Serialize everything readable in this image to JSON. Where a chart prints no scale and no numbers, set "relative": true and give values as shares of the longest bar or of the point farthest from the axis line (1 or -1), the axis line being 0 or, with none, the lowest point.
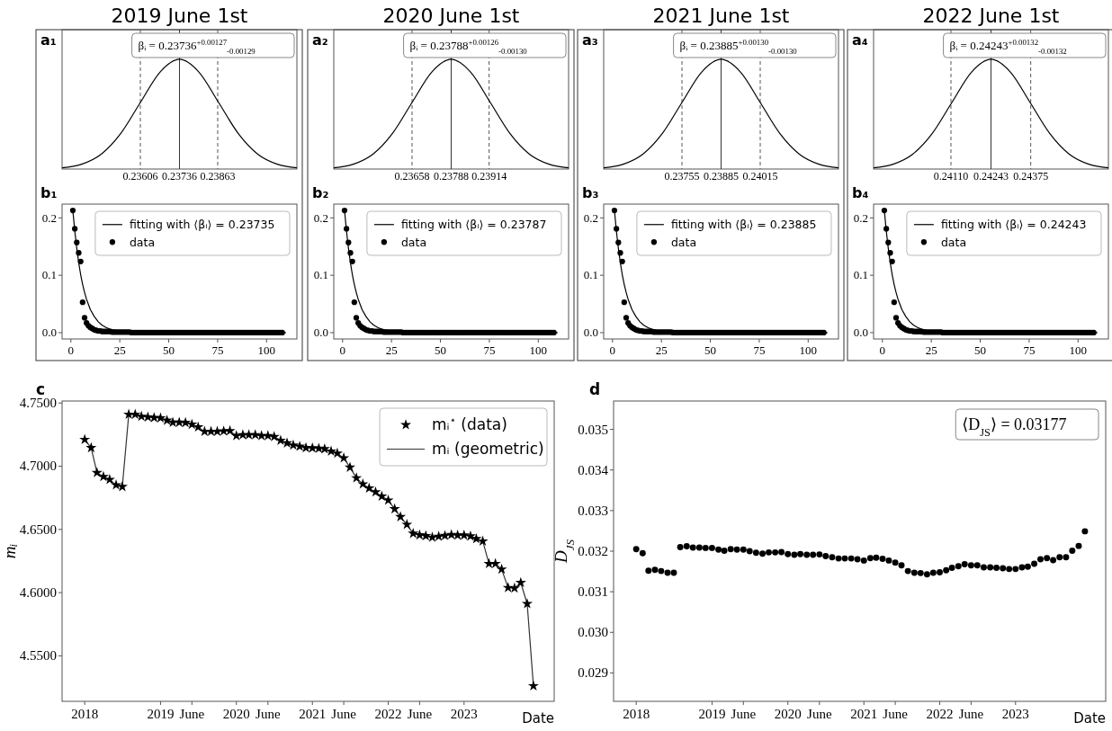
{
  "chart_data": [
    {
      "type": "line",
      "title": "2019 June 1st",
      "relative": true,
      "annotations": [
        "a₁",
        "βᵢ = 0.23736$^{+0.00127}$$_{-0.00129}$"
      ],
      "xlim": [
        0.23346,
        0.24126
      ],
      "xticks": [
        0.23606,
        0.23736,
        0.23863
      ],
      "ref_lines": [
        {
          "axis": "x",
          "value": 0.23606,
          "color": "#555555",
          "line_style": "dashed"
        },
        {
          "axis": "x",
          "value": 0.23736,
          "color": "#333333",
          "line_style": "solid"
        },
        {
          "axis": "x",
          "value": 0.23863,
          "color": "#555555",
          "line_style": "dashed"
        }
      ],
      "series": [
        {
          "color": "#000000",
          "x": [
            0.23346,
            0.23411,
            0.23476,
            0.23541,
            0.23606,
            0.23671,
            0.23736,
            0.23801,
            0.23866,
            0.23931,
            0.23996,
            0.24061,
            0.24126
          ],
          "values": [
            0.0111,
            0.0439,
            0.1353,
            0.3247,
            0.6065,
            0.8825,
            1,
            0.8825,
            0.6065,
            0.3247,
            0.1353,
            0.0439,
            0.0111
          ]
        }
      ]
    },
    {
      "type": "line",
      "title": "2020 June 1st",
      "relative": true,
      "annotations": [
        "a₂",
        "βᵢ = 0.23788$^{+0.00126}$$_{-0.00130}$"
      ],
      "xlim": [
        0.23398,
        0.24178
      ],
      "xticks": [
        0.23658,
        0.23788,
        0.23914
      ],
      "ref_lines": [
        {
          "axis": "x",
          "value": 0.23658,
          "color": "#555555",
          "line_style": "dashed"
        },
        {
          "axis": "x",
          "value": 0.23788,
          "color": "#333333",
          "line_style": "solid"
        },
        {
          "axis": "x",
          "value": 0.23914,
          "color": "#555555",
          "line_style": "dashed"
        }
      ],
      "series": [
        {
          "color": "#000000",
          "x": [
            0.23398,
            0.23463,
            0.23528,
            0.23593,
            0.23658,
            0.23723,
            0.23788,
            0.23853,
            0.23918,
            0.23983,
            0.24048,
            0.24113,
            0.24178
          ],
          "values": [
            0.0111,
            0.0439,
            0.1353,
            0.3247,
            0.6065,
            0.8825,
            1,
            0.8825,
            0.6065,
            0.3247,
            0.1353,
            0.0439,
            0.0111
          ]
        }
      ]
    },
    {
      "type": "line",
      "title": "2021 June 1st",
      "relative": true,
      "annotations": [
        "a₃",
        "βᵢ = 0.23885$^{+0.00130}$$_{-0.00130}$"
      ],
      "xlim": [
        0.23495,
        0.24275
      ],
      "xticks": [
        0.23755,
        0.23885,
        0.24015
      ],
      "ref_lines": [
        {
          "axis": "x",
          "value": 0.23755,
          "color": "#555555",
          "line_style": "dashed"
        },
        {
          "axis": "x",
          "value": 0.23885,
          "color": "#333333",
          "line_style": "solid"
        },
        {
          "axis": "x",
          "value": 0.24015,
          "color": "#555555",
          "line_style": "dashed"
        }
      ],
      "series": [
        {
          "color": "#000000",
          "x": [
            0.23495,
            0.2356,
            0.23625,
            0.2369,
            0.23755,
            0.2382,
            0.23885,
            0.2395,
            0.24015,
            0.2408,
            0.24145,
            0.2421,
            0.24275
          ],
          "values": [
            0.0111,
            0.0439,
            0.1353,
            0.3247,
            0.6065,
            0.8825,
            1,
            0.8825,
            0.6065,
            0.3247,
            0.1353,
            0.0439,
            0.0111
          ]
        }
      ]
    },
    {
      "type": "line",
      "title": "2022 June 1st",
      "relative": true,
      "annotations": [
        "a₄",
        "βᵢ = 0.24243$^{+0.00132}$$_{-0.00132}$"
      ],
      "xlim": [
        0.23853,
        0.24633
      ],
      "xticks": [
        {
          "value": 0.2411,
          "label": "0.24110"
        },
        0.24243,
        0.24375
      ],
      "ref_lines": [
        {
          "axis": "x",
          "value": 0.2411,
          "color": "#555555",
          "line_style": "dashed"
        },
        {
          "axis": "x",
          "value": 0.24243,
          "color": "#333333",
          "line_style": "solid"
        },
        {
          "axis": "x",
          "value": 0.24375,
          "color": "#555555",
          "line_style": "dashed"
        }
      ],
      "series": [
        {
          "color": "#000000",
          "x": [
            0.23853,
            0.23918,
            0.23983,
            0.24048,
            0.24113,
            0.24178,
            0.24243,
            0.24308,
            0.24373,
            0.24438,
            0.24503,
            0.24568,
            0.24633
          ],
          "values": [
            0.0111,
            0.0439,
            0.1353,
            0.3247,
            0.6065,
            0.8825,
            1,
            0.8825,
            0.6065,
            0.3247,
            0.1353,
            0.0439,
            0.0111
          ]
        }
      ]
    },
    {
      "type": "line",
      "annotations": [
        "b₁"
      ],
      "xlim": [
        -4.5,
        115.5
      ],
      "ylim": [
        -0.011,
        0.224
      ],
      "xticks": [
        0,
        25,
        50,
        75,
        100
      ],
      "yticks": [
        {
          "value": 0,
          "label": "0.0"
        },
        0.1,
        0.2
      ],
      "legend": "top right",
      "series": [
        {
          "name": "fitting with ⟨βᵢ⟩ = 0.23735",
          "type": "line",
          "color": "#000000",
          "x": [
            1,
            2,
            3,
            4,
            5,
            6,
            7,
            8,
            10,
            12,
            14,
            16,
            18,
            20,
            25,
            30,
            40,
            60,
            80,
            110
          ],
          "values": [
            0.213,
            0.177,
            0.147,
            0.122,
            0.101,
            0.084,
            0.07,
            0.058,
            0.04,
            0.028,
            0.019,
            0.013,
            0.009,
            0.006,
            0.002,
            0.001,
            0,
            0,
            0,
            0
          ]
        },
        {
          "name": "data",
          "type": "scatter",
          "marker": "circle",
          "color": "#000000",
          "x": [
            1,
            2,
            3,
            4,
            5,
            6,
            7,
            8,
            9,
            10,
            11,
            12,
            13,
            14,
            15,
            16,
            17,
            18,
            19,
            20,
            21,
            22,
            23,
            24,
            25,
            26,
            27,
            28,
            29,
            30,
            31,
            32,
            33,
            34,
            35,
            36,
            37,
            38,
            39,
            40,
            41,
            42,
            43,
            44,
            45,
            46,
            47,
            48,
            49,
            50,
            51,
            52,
            53,
            54,
            55,
            56,
            57,
            58,
            59,
            60,
            61,
            62,
            63,
            64,
            65,
            66,
            67,
            68,
            69,
            70,
            71,
            72,
            73,
            74,
            75,
            76,
            77,
            78,
            79,
            80,
            81,
            82,
            83,
            84,
            85,
            86,
            87,
            88,
            89,
            90,
            91,
            92,
            93,
            94,
            95,
            96,
            97,
            98,
            99,
            100,
            101,
            102,
            103,
            104,
            105,
            106,
            107,
            108
          ],
          "values": [
            0.213,
            0.181,
            0.157,
            0.139,
            0.124,
            0.053,
            0.026,
            0.017,
            0.012,
            0.009,
            0.007,
            0.005,
            0.004,
            0.003,
            0.003,
            0.002,
            0.002,
            0.002,
            0.002,
            0.002,
            0.001,
            0.001,
            0.001,
            0.001,
            0.001,
            0.001,
            0.001,
            0.001,
            0.001,
            0.001,
            0,
            0,
            0,
            0,
            0,
            0,
            0,
            0,
            0,
            0,
            0,
            0,
            0,
            0,
            0,
            0,
            0,
            0,
            0,
            0,
            0,
            0,
            0,
            0,
            0,
            0,
            0,
            0,
            0,
            0,
            0,
            0,
            0,
            0,
            0,
            0,
            0,
            0,
            0,
            0,
            0,
            0,
            0,
            0,
            0,
            0,
            0,
            0,
            0,
            0,
            0,
            0,
            0,
            0,
            0,
            0,
            0,
            0,
            0,
            0,
            0,
            0,
            0,
            0,
            0,
            0,
            0,
            0,
            0,
            0,
            0,
            0,
            0,
            0,
            0,
            0,
            0,
            0
          ]
        }
      ]
    },
    {
      "type": "line",
      "annotations": [
        "b₂"
      ],
      "xlim": [
        -4.5,
        115.5
      ],
      "ylim": [
        -0.011,
        0.224
      ],
      "xticks": [
        0,
        25,
        50,
        75,
        100
      ],
      "yticks": [
        {
          "value": 0,
          "label": "0.0"
        },
        0.1,
        0.2
      ],
      "legend": "top right",
      "series": [
        {
          "name": "fitting with ⟨βᵢ⟩ = 0.23787",
          "type": "line",
          "color": "#000000",
          "x": [
            1,
            2,
            3,
            4,
            5,
            6,
            7,
            8,
            10,
            12,
            14,
            16,
            18,
            20,
            25,
            30,
            40,
            60,
            80,
            110
          ],
          "values": [
            0.213,
            0.177,
            0.147,
            0.122,
            0.101,
            0.084,
            0.07,
            0.058,
            0.04,
            0.028,
            0.019,
            0.013,
            0.009,
            0.006,
            0.002,
            0.001,
            0,
            0,
            0,
            0
          ]
        },
        {
          "name": "data",
          "type": "scatter",
          "marker": "circle",
          "color": "#000000",
          "x": [
            1,
            2,
            3,
            4,
            5,
            6,
            7,
            8,
            9,
            10,
            11,
            12,
            13,
            14,
            15,
            16,
            17,
            18,
            19,
            20,
            21,
            22,
            23,
            24,
            25,
            26,
            27,
            28,
            29,
            30,
            31,
            32,
            33,
            34,
            35,
            36,
            37,
            38,
            39,
            40,
            41,
            42,
            43,
            44,
            45,
            46,
            47,
            48,
            49,
            50,
            51,
            52,
            53,
            54,
            55,
            56,
            57,
            58,
            59,
            60,
            61,
            62,
            63,
            64,
            65,
            66,
            67,
            68,
            69,
            70,
            71,
            72,
            73,
            74,
            75,
            76,
            77,
            78,
            79,
            80,
            81,
            82,
            83,
            84,
            85,
            86,
            87,
            88,
            89,
            90,
            91,
            92,
            93,
            94,
            95,
            96,
            97,
            98,
            99,
            100,
            101,
            102,
            103,
            104,
            105,
            106,
            107,
            108
          ],
          "values": [
            0.213,
            0.181,
            0.157,
            0.139,
            0.124,
            0.053,
            0.026,
            0.017,
            0.012,
            0.009,
            0.007,
            0.005,
            0.004,
            0.003,
            0.003,
            0.002,
            0.002,
            0.002,
            0.002,
            0.002,
            0.001,
            0.001,
            0.001,
            0.001,
            0.001,
            0.001,
            0.001,
            0.001,
            0.001,
            0.001,
            0,
            0,
            0,
            0,
            0,
            0,
            0,
            0,
            0,
            0,
            0,
            0,
            0,
            0,
            0,
            0,
            0,
            0,
            0,
            0,
            0,
            0,
            0,
            0,
            0,
            0,
            0,
            0,
            0,
            0,
            0,
            0,
            0,
            0,
            0,
            0,
            0,
            0,
            0,
            0,
            0,
            0,
            0,
            0,
            0,
            0,
            0,
            0,
            0,
            0,
            0,
            0,
            0,
            0,
            0,
            0,
            0,
            0,
            0,
            0,
            0,
            0,
            0,
            0,
            0,
            0,
            0,
            0,
            0,
            0,
            0,
            0,
            0,
            0,
            0,
            0,
            0,
            0
          ]
        }
      ]
    },
    {
      "type": "line",
      "annotations": [
        "b₃"
      ],
      "xlim": [
        -4.5,
        115.5
      ],
      "ylim": [
        -0.011,
        0.224
      ],
      "xticks": [
        0,
        25,
        50,
        75,
        100
      ],
      "yticks": [
        {
          "value": 0,
          "label": "0.0"
        },
        0.1,
        0.2
      ],
      "legend": "top right",
      "series": [
        {
          "name": "fitting with ⟨βᵢ⟩ = 0.23885",
          "type": "line",
          "color": "#000000",
          "x": [
            1,
            2,
            3,
            4,
            5,
            6,
            7,
            8,
            10,
            12,
            14,
            16,
            18,
            20,
            25,
            30,
            40,
            60,
            80,
            110
          ],
          "values": [
            0.213,
            0.177,
            0.147,
            0.122,
            0.101,
            0.084,
            0.07,
            0.058,
            0.04,
            0.028,
            0.019,
            0.013,
            0.009,
            0.006,
            0.002,
            0.001,
            0,
            0,
            0,
            0
          ]
        },
        {
          "name": "data",
          "type": "scatter",
          "marker": "circle",
          "color": "#000000",
          "x": [
            1,
            2,
            3,
            4,
            5,
            6,
            7,
            8,
            9,
            10,
            11,
            12,
            13,
            14,
            15,
            16,
            17,
            18,
            19,
            20,
            21,
            22,
            23,
            24,
            25,
            26,
            27,
            28,
            29,
            30,
            31,
            32,
            33,
            34,
            35,
            36,
            37,
            38,
            39,
            40,
            41,
            42,
            43,
            44,
            45,
            46,
            47,
            48,
            49,
            50,
            51,
            52,
            53,
            54,
            55,
            56,
            57,
            58,
            59,
            60,
            61,
            62,
            63,
            64,
            65,
            66,
            67,
            68,
            69,
            70,
            71,
            72,
            73,
            74,
            75,
            76,
            77,
            78,
            79,
            80,
            81,
            82,
            83,
            84,
            85,
            86,
            87,
            88,
            89,
            90,
            91,
            92,
            93,
            94,
            95,
            96,
            97,
            98,
            99,
            100,
            101,
            102,
            103,
            104,
            105,
            106,
            107,
            108
          ],
          "values": [
            0.213,
            0.181,
            0.157,
            0.139,
            0.124,
            0.053,
            0.026,
            0.017,
            0.012,
            0.009,
            0.007,
            0.005,
            0.004,
            0.003,
            0.003,
            0.002,
            0.002,
            0.002,
            0.002,
            0.002,
            0.001,
            0.001,
            0.001,
            0.001,
            0.001,
            0.001,
            0.001,
            0.001,
            0.001,
            0.001,
            0,
            0,
            0,
            0,
            0,
            0,
            0,
            0,
            0,
            0,
            0,
            0,
            0,
            0,
            0,
            0,
            0,
            0,
            0,
            0,
            0,
            0,
            0,
            0,
            0,
            0,
            0,
            0,
            0,
            0,
            0,
            0,
            0,
            0,
            0,
            0,
            0,
            0,
            0,
            0,
            0,
            0,
            0,
            0,
            0,
            0,
            0,
            0,
            0,
            0,
            0,
            0,
            0,
            0,
            0,
            0,
            0,
            0,
            0,
            0,
            0,
            0,
            0,
            0,
            0,
            0,
            0,
            0,
            0,
            0,
            0,
            0,
            0,
            0,
            0,
            0,
            0,
            0
          ]
        }
      ]
    },
    {
      "type": "line",
      "annotations": [
        "b₄"
      ],
      "xlim": [
        -4.5,
        115.5
      ],
      "ylim": [
        -0.011,
        0.224
      ],
      "xticks": [
        0,
        25,
        50,
        75,
        100
      ],
      "yticks": [
        {
          "value": 0,
          "label": "0.0"
        },
        0.1,
        0.2
      ],
      "legend": "top right",
      "series": [
        {
          "name": "fitting with ⟨βᵢ⟩ = 0.24243",
          "type": "line",
          "color": "#000000",
          "x": [
            1,
            2,
            3,
            4,
            5,
            6,
            7,
            8,
            10,
            12,
            14,
            16,
            18,
            20,
            25,
            30,
            40,
            60,
            80,
            110
          ],
          "values": [
            0.213,
            0.177,
            0.147,
            0.122,
            0.101,
            0.084,
            0.07,
            0.058,
            0.04,
            0.028,
            0.019,
            0.013,
            0.009,
            0.006,
            0.002,
            0.001,
            0,
            0,
            0,
            0
          ]
        },
        {
          "name": "data",
          "type": "scatter",
          "marker": "circle",
          "color": "#000000",
          "x": [
            1,
            2,
            3,
            4,
            5,
            6,
            7,
            8,
            9,
            10,
            11,
            12,
            13,
            14,
            15,
            16,
            17,
            18,
            19,
            20,
            21,
            22,
            23,
            24,
            25,
            26,
            27,
            28,
            29,
            30,
            31,
            32,
            33,
            34,
            35,
            36,
            37,
            38,
            39,
            40,
            41,
            42,
            43,
            44,
            45,
            46,
            47,
            48,
            49,
            50,
            51,
            52,
            53,
            54,
            55,
            56,
            57,
            58,
            59,
            60,
            61,
            62,
            63,
            64,
            65,
            66,
            67,
            68,
            69,
            70,
            71,
            72,
            73,
            74,
            75,
            76,
            77,
            78,
            79,
            80,
            81,
            82,
            83,
            84,
            85,
            86,
            87,
            88,
            89,
            90,
            91,
            92,
            93,
            94,
            95,
            96,
            97,
            98,
            99,
            100,
            101,
            102,
            103,
            104,
            105,
            106,
            107,
            108
          ],
          "values": [
            0.213,
            0.181,
            0.157,
            0.139,
            0.124,
            0.053,
            0.026,
            0.017,
            0.012,
            0.009,
            0.007,
            0.005,
            0.004,
            0.003,
            0.003,
            0.002,
            0.002,
            0.002,
            0.002,
            0.002,
            0.001,
            0.001,
            0.001,
            0.001,
            0.001,
            0.001,
            0.001,
            0.001,
            0.001,
            0.001,
            0,
            0,
            0,
            0,
            0,
            0,
            0,
            0,
            0,
            0,
            0,
            0,
            0,
            0,
            0,
            0,
            0,
            0,
            0,
            0,
            0,
            0,
            0,
            0,
            0,
            0,
            0,
            0,
            0,
            0,
            0,
            0,
            0,
            0,
            0,
            0,
            0,
            0,
            0,
            0,
            0,
            0,
            0,
            0,
            0,
            0,
            0,
            0,
            0,
            0,
            0,
            0,
            0,
            0,
            0,
            0,
            0,
            0,
            0,
            0,
            0,
            0,
            0,
            0,
            0,
            0,
            0,
            0,
            0,
            0,
            0,
            0,
            0,
            0,
            0,
            0,
            0,
            0
          ]
        }
      ]
    },
    {
      "type": "line",
      "annotations": [
        "c"
      ],
      "xlabel": "Date",
      "ylabel": "mᵢ",
      "legend": "top right",
      "xlim": [
        "2017-09-14",
        "2024-03-10"
      ],
      "ylim": [
        4.514,
        4.7516
      ],
      "xticks": [
        {
          "value": "2018-01",
          "label": "2018"
        },
        {
          "value": "2019-01",
          "label": "2019"
        },
        {
          "value": "2019-06",
          "label": "June"
        },
        {
          "value": "2020-01",
          "label": "2020"
        },
        {
          "value": "2020-06",
          "label": "June"
        },
        {
          "value": "2021-01",
          "label": "2021"
        },
        {
          "value": "2021-06",
          "label": "June"
        },
        {
          "value": "2022-01",
          "label": "2022"
        },
        {
          "value": "2022-06",
          "label": "June"
        },
        {
          "value": "2023-01",
          "label": "2023"
        }
      ],
      "yticks": [
        {
          "value": 4.55,
          "label": "4.5500"
        },
        {
          "value": 4.6,
          "label": "4.6000"
        },
        {
          "value": 4.65,
          "label": "4.6500"
        },
        {
          "value": 4.7,
          "label": "4.7000"
        },
        {
          "value": 4.75,
          "label": "4.7500"
        }
      ],
      "x": [
        "2018-01",
        "2018-02",
        "2018-03",
        "2018-04",
        "2018-05",
        "2018-06",
        "2018-07",
        "2018-08",
        "2018-09",
        "2018-10",
        "2018-11",
        "2018-12",
        "2019-01",
        "2019-02",
        "2019-03",
        "2019-04",
        "2019-05",
        "2019-06",
        "2019-07",
        "2019-08",
        "2019-09",
        "2019-10",
        "2019-11",
        "2019-12",
        "2020-01",
        "2020-02",
        "2020-03",
        "2020-04",
        "2020-05",
        "2020-06",
        "2020-07",
        "2020-08",
        "2020-09",
        "2020-10",
        "2020-11",
        "2020-12",
        "2021-01",
        "2021-02",
        "2021-03",
        "2021-04",
        "2021-05",
        "2021-06",
        "2021-07",
        "2021-08",
        "2021-09",
        "2021-10",
        "2021-11",
        "2021-12",
        "2022-01",
        "2022-02",
        "2022-03",
        "2022-04",
        "2022-05",
        "2022-06",
        "2022-07",
        "2022-08",
        "2022-09",
        "2022-10",
        "2022-11",
        "2022-12",
        "2023-01",
        "2023-02",
        "2023-03",
        "2023-04",
        "2023-05",
        "2023-06",
        "2023-07",
        "2023-08",
        "2023-09",
        "2023-10",
        "2023-11",
        "2023-12"
      ],
      "series": [
        {
          "name": "mᵢ$^{⋆}$ (data)",
          "type": "scatter",
          "marker": "star",
          "color": "#000000",
          "values": [
            4.7211,
            4.7146,
            4.6949,
            4.6917,
            4.6894,
            4.6852,
            4.6838,
            4.741,
            4.741,
            4.7394,
            4.7389,
            4.7384,
            4.7382,
            4.7363,
            4.7347,
            4.7347,
            4.7345,
            4.7331,
            4.731,
            4.7275,
            4.7275,
            4.7275,
            4.7278,
            4.728,
            4.7241,
            4.7248,
            4.7248,
            4.7248,
            4.7241,
            4.7241,
            4.7234,
            4.7204,
            4.7183,
            4.7166,
            4.7157,
            4.7146,
            4.7144,
            4.7141,
            4.7137,
            4.7118,
            4.7102,
            4.7065,
            4.6991,
            4.6907,
            4.6859,
            4.6826,
            4.6796,
            4.6762,
            4.6731,
            4.6662,
            4.66,
            4.6539,
            4.6468,
            4.6456,
            4.6449,
            4.6437,
            4.6444,
            4.6451,
            4.6458,
            4.6454,
            4.6454,
            4.6447,
            4.6426,
            4.6407,
            4.6229,
            4.6229,
            4.6185,
            4.6039,
            4.6035,
            4.6079,
            4.5912,
            4.5262
          ]
        },
        {
          "name": "mᵢ (geometric)",
          "type": "line",
          "color": "#333333",
          "values": [
            4.7211,
            4.7146,
            4.6949,
            4.6917,
            4.6894,
            4.6852,
            4.6838,
            4.741,
            4.741,
            4.7394,
            4.7389,
            4.7384,
            4.7382,
            4.7363,
            4.7347,
            4.7347,
            4.7345,
            4.7331,
            4.731,
            4.7275,
            4.7275,
            4.7275,
            4.7278,
            4.728,
            4.7241,
            4.7248,
            4.7248,
            4.7248,
            4.7241,
            4.7241,
            4.7234,
            4.7204,
            4.7183,
            4.7166,
            4.7157,
            4.7146,
            4.7144,
            4.7141,
            4.7137,
            4.7118,
            4.7102,
            4.7065,
            4.6991,
            4.6907,
            4.6859,
            4.6826,
            4.6796,
            4.6762,
            4.6731,
            4.6662,
            4.66,
            4.6539,
            4.6468,
            4.6456,
            4.6449,
            4.6437,
            4.6444,
            4.6451,
            4.6458,
            4.6454,
            4.6454,
            4.6447,
            4.6426,
            4.6407,
            4.6229,
            4.6229,
            4.6185,
            4.6039,
            4.6035,
            4.6079,
            4.5912,
            4.5262
          ]
        }
      ]
    },
    {
      "type": "scatter",
      "marker": "circle",
      "annotations": [
        "d",
        "⟨D$_{JS}$⟩ = 0.03177"
      ],
      "xlabel": "Date",
      "ylabel": "D$_{JS}$",
      "xlim": [
        "2017-09-14",
        "2024-03-10"
      ],
      "ylim": [
        0.0283,
        0.0357
      ],
      "xticks": [
        {
          "value": "2018-01",
          "label": "2018"
        },
        {
          "value": "2019-01",
          "label": "2019"
        },
        {
          "value": "2019-06",
          "label": "June"
        },
        {
          "value": "2020-01",
          "label": "2020"
        },
        {
          "value": "2020-06",
          "label": "June"
        },
        {
          "value": "2021-01",
          "label": "2021"
        },
        {
          "value": "2021-06",
          "label": "June"
        },
        {
          "value": "2022-01",
          "label": "2022"
        },
        {
          "value": "2022-06",
          "label": "June"
        },
        {
          "value": "2023-01",
          "label": "2023"
        }
      ],
      "yticks": [
        0.029,
        {
          "value": 0.03,
          "label": "0.030"
        },
        0.031,
        0.032,
        0.033,
        0.034,
        0.035
      ],
      "x": [
        "2018-01",
        "2018-02",
        "2018-03",
        "2018-04",
        "2018-05",
        "2018-06",
        "2018-07",
        "2018-08",
        "2018-09",
        "2018-10",
        "2018-11",
        "2018-12",
        "2019-01",
        "2019-02",
        "2019-03",
        "2019-04",
        "2019-05",
        "2019-06",
        "2019-07",
        "2019-08",
        "2019-09",
        "2019-10",
        "2019-11",
        "2019-12",
        "2020-01",
        "2020-02",
        "2020-03",
        "2020-04",
        "2020-05",
        "2020-06",
        "2020-07",
        "2020-08",
        "2020-09",
        "2020-10",
        "2020-11",
        "2020-12",
        "2021-01",
        "2021-02",
        "2021-03",
        "2021-04",
        "2021-05",
        "2021-06",
        "2021-07",
        "2021-08",
        "2021-09",
        "2021-10",
        "2021-11",
        "2021-12",
        "2022-01",
        "2022-02",
        "2022-03",
        "2022-04",
        "2022-05",
        "2022-06",
        "2022-07",
        "2022-08",
        "2022-09",
        "2022-10",
        "2022-11",
        "2022-12",
        "2023-01",
        "2023-02",
        "2023-03",
        "2023-04",
        "2023-05",
        "2023-06",
        "2023-07",
        "2023-08",
        "2023-09",
        "2023-10",
        "2023-11",
        "2023-12"
      ],
      "series": [
        {
          "color": "#000000",
          "values": [
            0.03205,
            0.03195,
            0.03152,
            0.03154,
            0.03151,
            0.03147,
            0.03147,
            0.0321,
            0.03212,
            0.03209,
            0.03209,
            0.03208,
            0.03208,
            0.03204,
            0.03201,
            0.03205,
            0.03204,
            0.03204,
            0.032,
            0.03196,
            0.03194,
            0.03197,
            0.03197,
            0.03198,
            0.03193,
            0.03191,
            0.03193,
            0.03191,
            0.03191,
            0.03192,
            0.03188,
            0.03185,
            0.03182,
            0.03182,
            0.03182,
            0.0318,
            0.03177,
            0.03183,
            0.03184,
            0.03181,
            0.03177,
            0.03172,
            0.03165,
            0.03151,
            0.03147,
            0.03146,
            0.03143,
            0.03147,
            0.03148,
            0.03153,
            0.03159,
            0.03163,
            0.03168,
            0.03165,
            0.03165,
            0.0316,
            0.0316,
            0.03159,
            0.03158,
            0.03156,
            0.03156,
            0.0316,
            0.03162,
            0.03169,
            0.0318,
            0.03183,
            0.03178,
            0.03185,
            0.03185,
            0.03201,
            0.03213,
            0.03249
          ]
        }
      ]
    }
  ]
}
